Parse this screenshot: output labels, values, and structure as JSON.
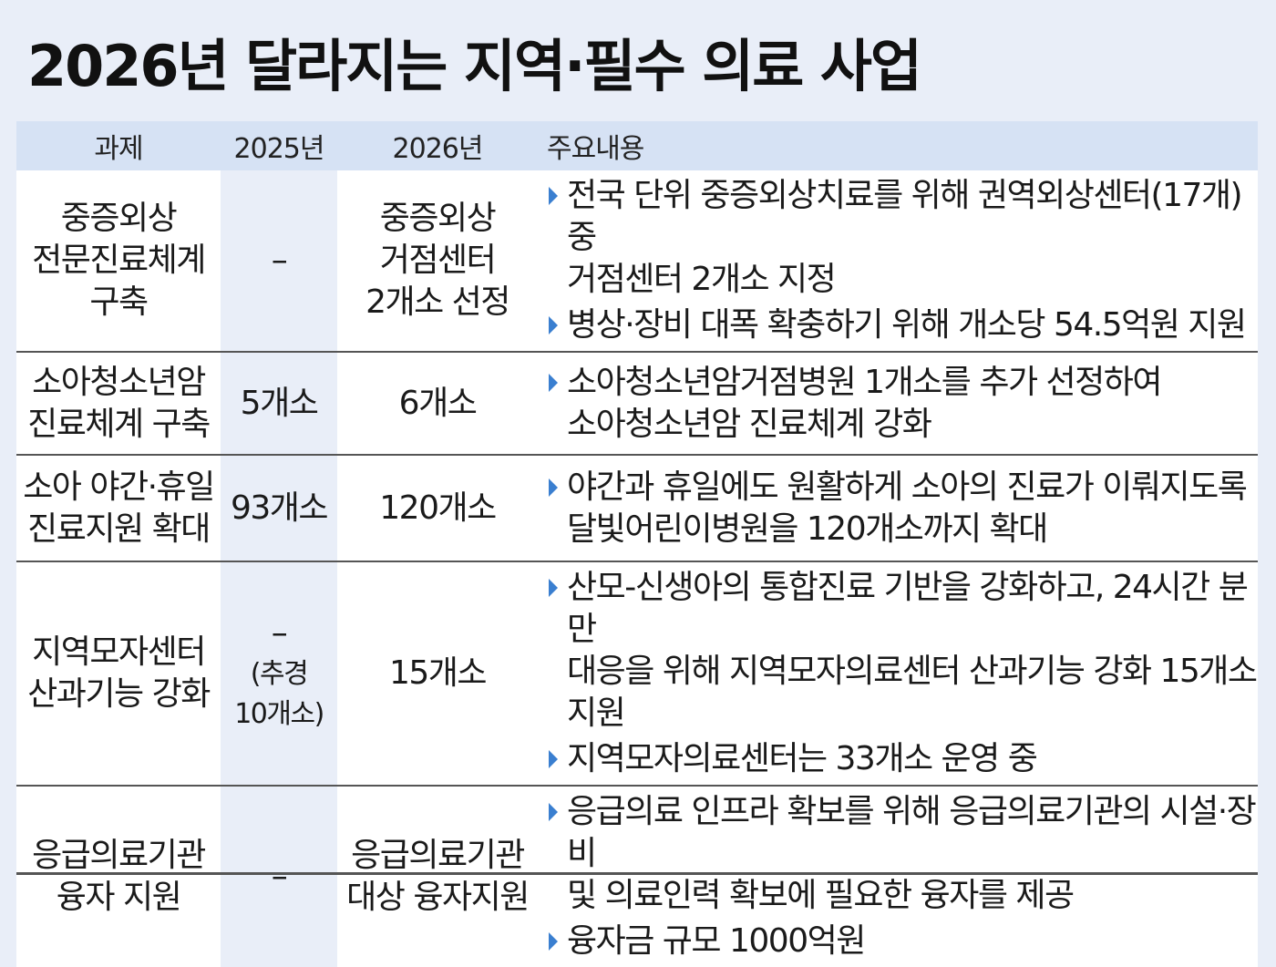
{
  "title": "2026년 달라지는 지역·필수 의료 사업",
  "headers": [
    "과제",
    "2025년",
    "2026년",
    "주요내용"
  ],
  "rows": [
    {
      "task": [
        "중증외상",
        "전문진료체계",
        "구축"
      ],
      "y2025": [
        "–"
      ],
      "y2026": [
        "중증외상",
        "거점센터",
        "2개소 선정"
      ],
      "bullets": [
        [
          "전국 단위 중증외상치료를 위해 권역외상센터(17개) 중",
          "거점센터 2개소 지정"
        ],
        [
          "병상·장비 대폭 확충하기 위해 개소당 54.5억원 지원"
        ]
      ]
    },
    {
      "task": [
        "소아청소년암",
        "진료체계 구축"
      ],
      "y2025": [
        "5개소"
      ],
      "y2026": [
        "6개소"
      ],
      "bullets": [
        [
          "소아청소년암거점병원 1개소를 추가 선정하여",
          "소아청소년암 진료체계 강화"
        ]
      ]
    },
    {
      "task": [
        "소아 야간·휴일",
        "진료지원 확대"
      ],
      "y2025": [
        "93개소"
      ],
      "y2026": [
        "120개소"
      ],
      "bullets": [
        [
          "야간과 휴일에도 원활하게 소아의 진료가 이뤄지도록",
          "달빛어린이병원을 120개소까지 확대"
        ]
      ]
    },
    {
      "task": [
        "지역모자센터",
        "산과기능 강화"
      ],
      "y2025": [
        "–",
        "(추경",
        "10개소)"
      ],
      "y2026": [
        "15개소"
      ],
      "bullets": [
        [
          "산모-신생아의 통합진료 기반을 강화하고, 24시간 분만",
          "대응을 위해 지역모자의료센터 산과기능 강화 15개소 지원"
        ],
        [
          "지역모자의료센터는 33개소 운영 중"
        ]
      ]
    },
    {
      "task": [
        "응급의료기관",
        "융자 지원"
      ],
      "y2025": [
        "–"
      ],
      "y2026": [
        "응급의료기관",
        "대상 융자지원"
      ],
      "bullets": [
        [
          "응급의료 인프라 확보를 위해 응급의료기관의 시설·장비",
          "및 의료인력 확보에 필요한 융자를 제공"
        ],
        [
          "융자금 규모 1000억원"
        ]
      ]
    }
  ],
  "colors": {
    "header_bg": "#d6e2f4",
    "page_bg": "#e9eef8",
    "bullet": "#3a7fd0"
  }
}
